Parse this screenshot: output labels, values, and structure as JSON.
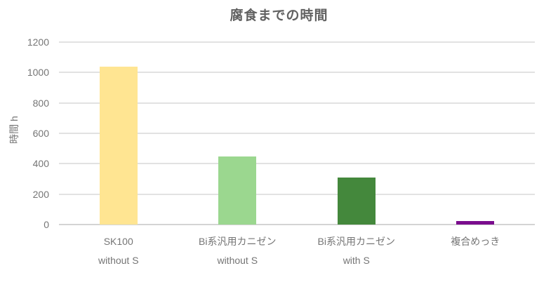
{
  "chart_data": {
    "type": "bar",
    "title": "腐食までの時間",
    "xlabel": "",
    "ylabel": "時間 h",
    "categories": [
      "SK100",
      "Bi系汎用カニゼン",
      "Bi系汎用カニゼン",
      "複合めっき"
    ],
    "category_sublabels": [
      "without S",
      "without S",
      "with S",
      ""
    ],
    "values": [
      1040,
      450,
      310,
      25
    ],
    "bar_colors": [
      "#ffe592",
      "#9bd78f",
      "#44883c",
      "#7a0c8d"
    ],
    "y_ticks": [
      0,
      200,
      400,
      600,
      800,
      1000,
      1200
    ],
    "ylim": [
      0,
      1200
    ],
    "grid": true,
    "legend_position": "none",
    "title_color": "#616161",
    "text_color": "#757575",
    "gridline_color": "#e2e2e2",
    "axisline_color": "#d4d4d4",
    "background_color": "#ffffff"
  }
}
